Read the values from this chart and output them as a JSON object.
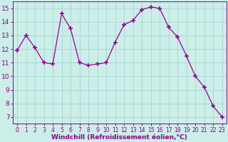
{
  "x": [
    0,
    1,
    2,
    3,
    4,
    5,
    6,
    7,
    8,
    9,
    10,
    11,
    12,
    13,
    14,
    15,
    16,
    17,
    18,
    19,
    20,
    21,
    22,
    23
  ],
  "y": [
    11.9,
    13.0,
    12.1,
    11.0,
    10.9,
    14.6,
    13.5,
    11.0,
    10.8,
    10.9,
    11.0,
    12.5,
    13.8,
    14.1,
    14.9,
    15.1,
    15.0,
    13.6,
    12.9,
    11.5,
    10.0,
    9.2,
    7.8,
    7.0
  ],
  "line_color": "#990099",
  "marker": "+",
  "marker_size": 4,
  "bg_color": "#cceee8",
  "grid_color": "#aad8d4",
  "xlabel": "Windchill (Refroidissement éolien,°C)",
  "ylim": [
    6.5,
    15.5
  ],
  "xlim": [
    -0.5,
    23.5
  ],
  "yticks": [
    7,
    8,
    9,
    10,
    11,
    12,
    13,
    14,
    15
  ],
  "xticks": [
    0,
    1,
    2,
    3,
    4,
    5,
    6,
    7,
    8,
    9,
    10,
    11,
    12,
    13,
    14,
    15,
    16,
    17,
    18,
    19,
    20,
    21,
    22,
    23
  ],
  "tick_color": "#880088",
  "label_color": "#880088",
  "axis_color": "#880088",
  "xlabel_fontsize": 6.5,
  "ytick_fontsize": 6.5,
  "xtick_fontsize": 5.5
}
